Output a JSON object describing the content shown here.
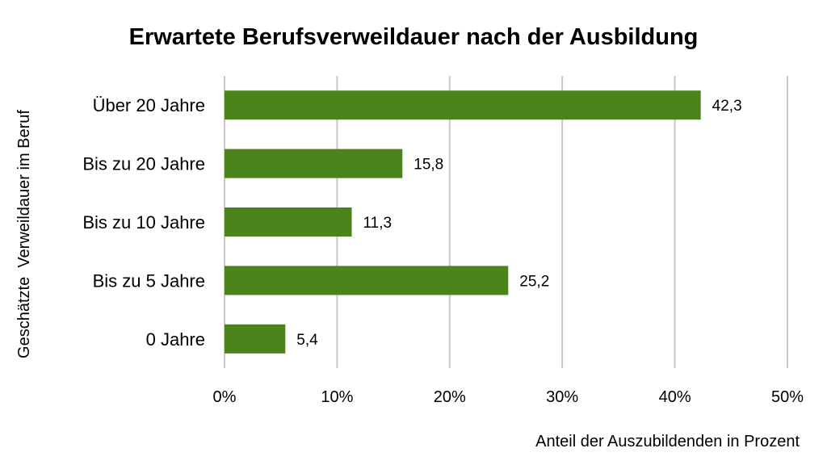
{
  "chart_data": {
    "type": "bar",
    "orientation": "horizontal",
    "title": "Erwartete Berufsverweildauer nach der Ausbildung",
    "xlabel": "Anteil der Auszubildenden in Prozent",
    "ylabel": "Geschätzte  Verweildauer im Beruf",
    "categories": [
      "Über 20 Jahre",
      "Bis zu 20 Jahre",
      "Bis zu 10 Jahre",
      "Bis zu 5 Jahre",
      "0 Jahre"
    ],
    "values": [
      42.3,
      15.8,
      11.3,
      25.2,
      5.4
    ],
    "value_labels": [
      "42,3",
      "15,8",
      "11,3",
      "25,2",
      "5,4"
    ],
    "xlim": [
      0,
      50
    ],
    "xticks": [
      0,
      10,
      20,
      30,
      40,
      50
    ],
    "xtick_labels": [
      "0%",
      "10%",
      "20%",
      "30%",
      "40%",
      "50%"
    ],
    "grid": true,
    "legend": "none",
    "bar_color": "#4b841a",
    "grid_color": "#c8c8cc"
  }
}
